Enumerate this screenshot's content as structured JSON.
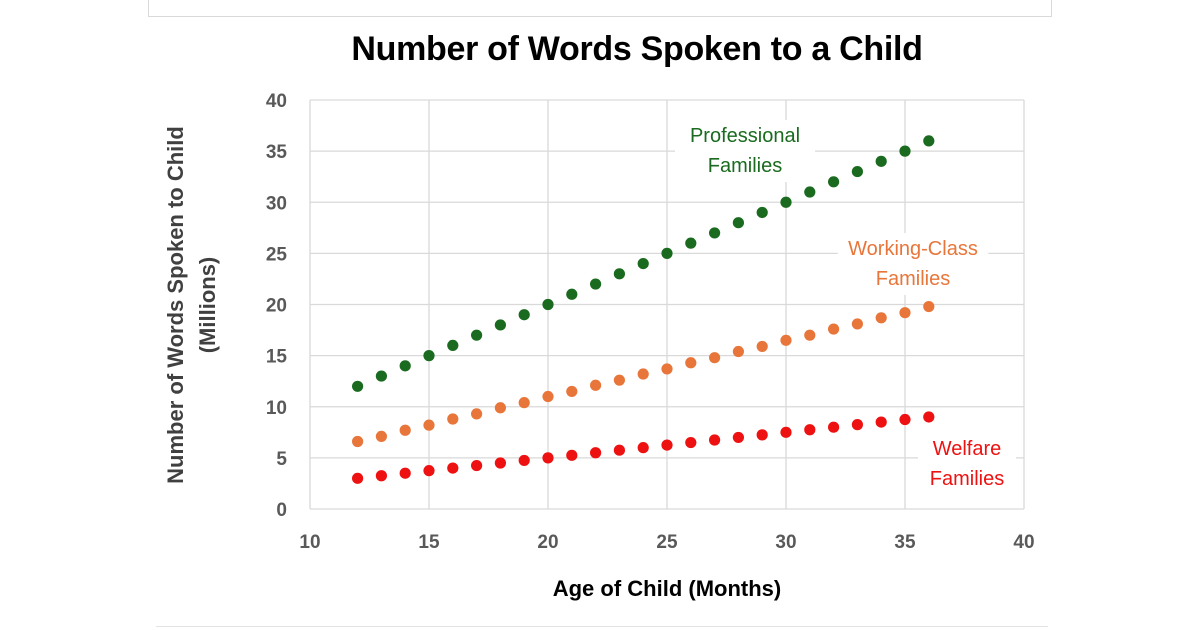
{
  "chart_data": {
    "type": "scatter",
    "title": "Number of Words Spoken to a Child",
    "xlabel": "Age of Child (Months)",
    "ylabel": [
      "Number of Words Spoken to Child",
      "(Millions)"
    ],
    "xlim": [
      10,
      40
    ],
    "ylim": [
      0,
      40
    ],
    "xticks": [
      10,
      15,
      20,
      25,
      30,
      35,
      40
    ],
    "yticks": [
      0,
      5,
      10,
      15,
      20,
      25,
      30,
      35,
      40
    ],
    "grid": true,
    "legend": "none; series labeled inline next to their data",
    "series": [
      {
        "name": [
          "Professional",
          "Families"
        ],
        "color": "#1a6b1f",
        "x": [
          12,
          13,
          14,
          15,
          16,
          17,
          18,
          19,
          20,
          21,
          22,
          23,
          24,
          25,
          26,
          27,
          28,
          29,
          30,
          31,
          32,
          33,
          34,
          35,
          36
        ],
        "y": [
          12,
          13,
          14,
          15,
          16,
          17,
          18,
          19,
          20,
          21,
          22,
          23,
          24,
          25,
          26,
          27,
          28,
          29,
          30,
          31,
          32,
          33,
          34,
          35,
          36
        ]
      },
      {
        "name": [
          "Working-Class",
          "Families"
        ],
        "color": "#e8763a",
        "x": [
          12,
          13,
          14,
          15,
          16,
          17,
          18,
          19,
          20,
          21,
          22,
          23,
          24,
          25,
          26,
          27,
          28,
          29,
          30,
          31,
          32,
          33,
          34,
          35,
          36
        ],
        "y": [
          6.6,
          7.1,
          7.7,
          8.2,
          8.8,
          9.3,
          9.9,
          10.4,
          11,
          11.5,
          12.1,
          12.6,
          13.2,
          13.7,
          14.3,
          14.8,
          15.4,
          15.9,
          16.5,
          17,
          17.6,
          18.1,
          18.7,
          19.2,
          19.8
        ]
      },
      {
        "name": [
          "Welfare",
          "Families"
        ],
        "color": "#ee1111",
        "x": [
          12,
          13,
          14,
          15,
          16,
          17,
          18,
          19,
          20,
          21,
          22,
          23,
          24,
          25,
          26,
          27,
          28,
          29,
          30,
          31,
          32,
          33,
          34,
          35,
          36
        ],
        "y": [
          3,
          3.25,
          3.5,
          3.75,
          4,
          4.25,
          4.5,
          4.75,
          5,
          5.25,
          5.5,
          5.75,
          6,
          6.25,
          6.5,
          6.75,
          7,
          7.25,
          7.5,
          7.75,
          8,
          8.25,
          8.5,
          8.75,
          9
        ]
      }
    ]
  }
}
